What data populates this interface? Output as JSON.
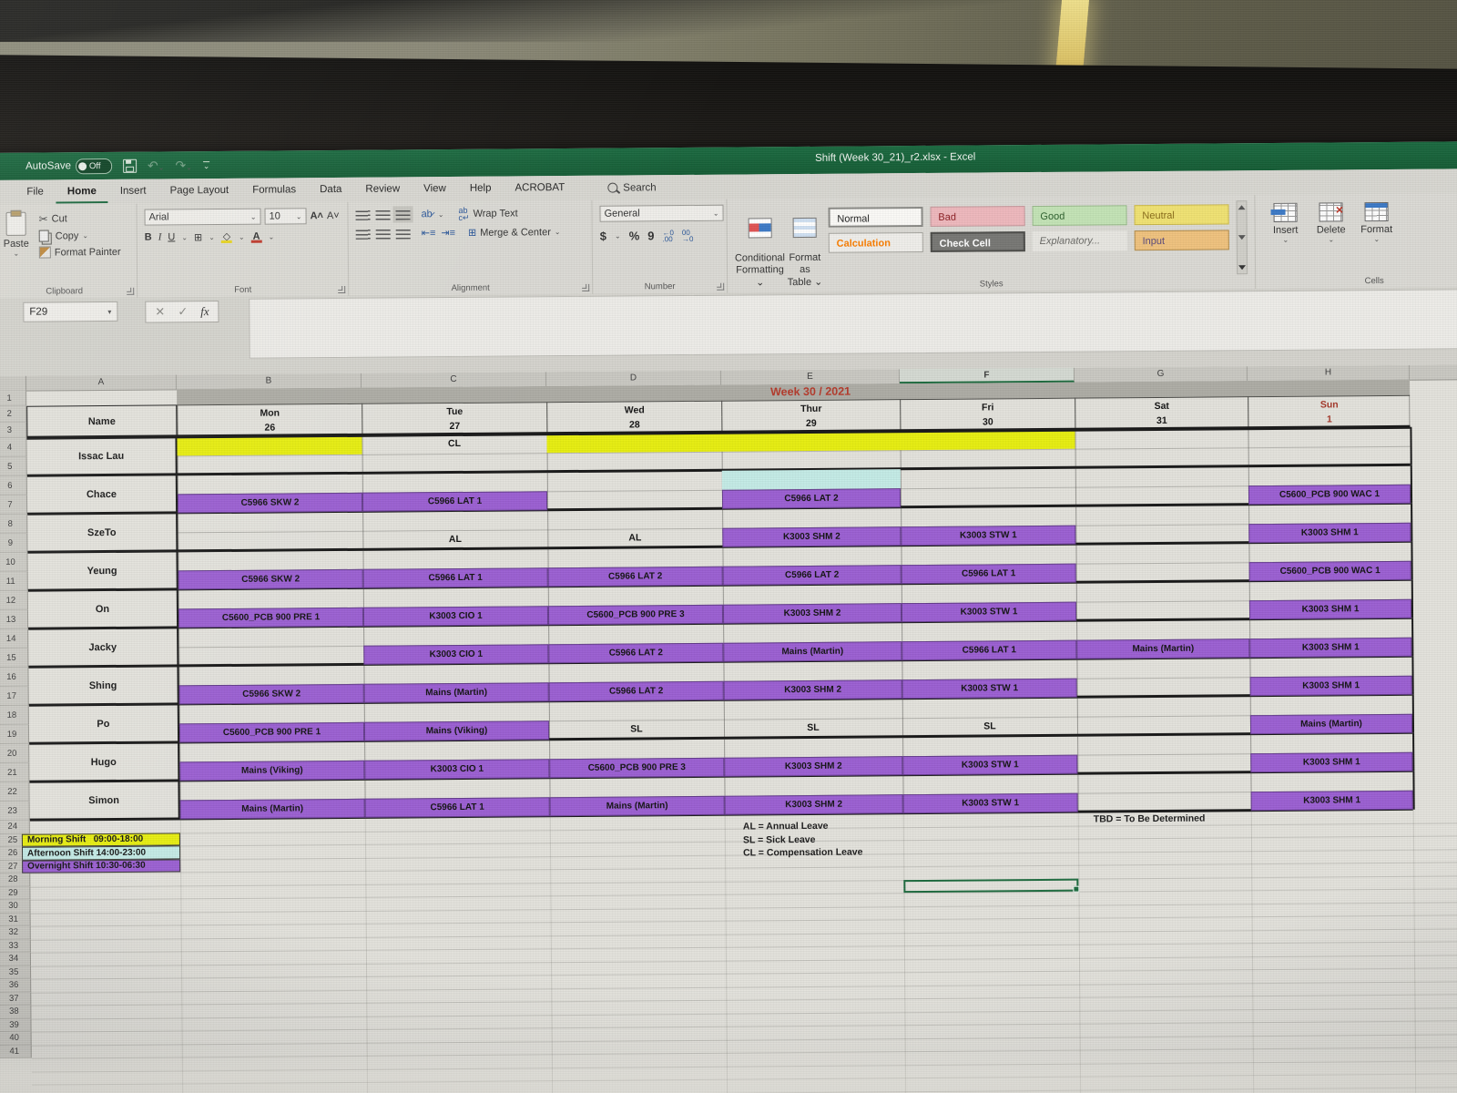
{
  "window": {
    "autosave_label": "AutoSave",
    "autosave_state": "Off",
    "title": "Shift (Week 30_21)_r2.xlsx  -  Excel"
  },
  "tabs": [
    "File",
    "Home",
    "Insert",
    "Page Layout",
    "Formulas",
    "Data",
    "Review",
    "View",
    "Help",
    "ACROBAT"
  ],
  "active_tab": "Home",
  "search": {
    "label": "Search"
  },
  "ribbon": {
    "clipboard": {
      "paste": "Paste",
      "cut": "Cut",
      "copy": "Copy",
      "format_painter": "Format Painter",
      "group": "Clipboard"
    },
    "font": {
      "name": "Arial",
      "size": "10",
      "bold": "B",
      "italic": "I",
      "underline": "U",
      "group": "Font"
    },
    "alignment": {
      "wrap_text": "Wrap Text",
      "merge_center": "Merge & Center",
      "group": "Alignment"
    },
    "number": {
      "format": "General",
      "currency": "$",
      "percent": "%",
      "comma": "9",
      "group": "Number"
    },
    "styles": {
      "conditional": "Conditional\nFormatting ⌄",
      "format_table": "Format as\nTable ⌄",
      "gallery": [
        "Normal",
        "Bad",
        "Good",
        "Neutral",
        "Calculation",
        "Check Cell",
        "Explanatory...",
        "Input"
      ],
      "group": "Styles"
    },
    "cells": {
      "buttons": [
        "Insert",
        "Delete",
        "Format"
      ],
      "group": "Cells"
    }
  },
  "formula_bar": {
    "name_box": "F29",
    "fx_label": "fx"
  },
  "sheet": {
    "columns": [
      "A",
      "B",
      "C",
      "D",
      "E",
      "F",
      "G",
      "H"
    ],
    "selected_column": "F",
    "selected_cell": "F29",
    "week_title": "Week 30 / 2021",
    "name_header": "Name",
    "days": [
      {
        "name": "Mon",
        "date": "26",
        "red": false
      },
      {
        "name": "Tue",
        "date": "27",
        "red": false
      },
      {
        "name": "Wed",
        "date": "28",
        "red": false
      },
      {
        "name": "Thur",
        "date": "29",
        "red": false
      },
      {
        "name": "Fri",
        "date": "30",
        "red": false
      },
      {
        "name": "Sat",
        "date": "31",
        "red": false
      },
      {
        "name": "Sun",
        "date": "1",
        "red": true
      }
    ],
    "row_max": 41,
    "roster": [
      {
        "name": "Issac Lau",
        "shifts": [
          {
            "day": "Mon",
            "span": 1,
            "row": "top",
            "type": "morning",
            "label": ""
          },
          {
            "day": "Tue",
            "span": 1,
            "row": "top",
            "type": "text",
            "label": "CL"
          },
          {
            "day": "Wed",
            "span": 3,
            "row": "top",
            "type": "morning",
            "label": ""
          }
        ]
      },
      {
        "name": "Chace",
        "shifts": [
          {
            "day": "Thu",
            "span": 1,
            "row": "top",
            "type": "afternoon",
            "label": ""
          },
          {
            "day": "Mon",
            "span": 1,
            "row": "bottom",
            "type": "overnight",
            "label": "C5966 SKW 2"
          },
          {
            "day": "Tue",
            "span": 1,
            "row": "bottom",
            "type": "overnight",
            "label": "C5966 LAT 1"
          },
          {
            "day": "Thu",
            "span": 1,
            "row": "bottom",
            "type": "overnight",
            "label": "C5966 LAT 2"
          },
          {
            "day": "Sun",
            "span": 1,
            "row": "bottom",
            "type": "overnight",
            "label": "C5600_PCB 900 WAC 1"
          }
        ]
      },
      {
        "name": "SzeTo",
        "shifts": [
          {
            "day": "Tue",
            "span": 1,
            "row": "bottom",
            "type": "text",
            "label": "AL"
          },
          {
            "day": "Wed",
            "span": 1,
            "row": "bottom",
            "type": "text",
            "label": "AL"
          },
          {
            "day": "Thu",
            "span": 1,
            "row": "bottom",
            "type": "overnight",
            "label": "K3003 SHM 2"
          },
          {
            "day": "Fri",
            "span": 1,
            "row": "bottom",
            "type": "overnight",
            "label": "K3003 STW 1"
          },
          {
            "day": "Sun",
            "span": 1,
            "row": "bottom",
            "type": "overnight",
            "label": "K3003 SHM 1"
          }
        ]
      },
      {
        "name": "Yeung",
        "shifts": [
          {
            "day": "Mon",
            "span": 1,
            "row": "bottom",
            "type": "overnight",
            "label": "C5966 SKW 2"
          },
          {
            "day": "Tue",
            "span": 1,
            "row": "bottom",
            "type": "overnight",
            "label": "C5966 LAT 1"
          },
          {
            "day": "Wed",
            "span": 1,
            "row": "bottom",
            "type": "overnight",
            "label": "C5966 LAT 2"
          },
          {
            "day": "Thu",
            "span": 1,
            "row": "bottom",
            "type": "overnight",
            "label": "C5966 LAT 2"
          },
          {
            "day": "Fri",
            "span": 1,
            "row": "bottom",
            "type": "overnight",
            "label": "C5966 LAT 1"
          },
          {
            "day": "Sun",
            "span": 1,
            "row": "bottom",
            "type": "overnight",
            "label": "C5600_PCB 900 WAC 1"
          }
        ]
      },
      {
        "name": "On",
        "shifts": [
          {
            "day": "Mon",
            "span": 1,
            "row": "bottom",
            "type": "overnight",
            "label": "C5600_PCB 900 PRE 1"
          },
          {
            "day": "Tue",
            "span": 1,
            "row": "bottom",
            "type": "overnight",
            "label": "K3003 CIO 1"
          },
          {
            "day": "Wed",
            "span": 1,
            "row": "bottom",
            "type": "overnight",
            "label": "C5600_PCB 900 PRE 3"
          },
          {
            "day": "Thu",
            "span": 1,
            "row": "bottom",
            "type": "overnight",
            "label": "K3003 SHM 2"
          },
          {
            "day": "Fri",
            "span": 1,
            "row": "bottom",
            "type": "overnight",
            "label": "K3003 STW 1"
          },
          {
            "day": "Sun",
            "span": 1,
            "row": "bottom",
            "type": "overnight",
            "label": "K3003 SHM 1"
          }
        ]
      },
      {
        "name": "Jacky",
        "shifts": [
          {
            "day": "Tue",
            "span": 1,
            "row": "bottom",
            "type": "overnight",
            "label": "K3003 CIO 1"
          },
          {
            "day": "Wed",
            "span": 1,
            "row": "bottom",
            "type": "overnight",
            "label": "C5966 LAT 2"
          },
          {
            "day": "Thu",
            "span": 1,
            "row": "bottom",
            "type": "overnight",
            "label": "Mains (Martin)"
          },
          {
            "day": "Fri",
            "span": 1,
            "row": "bottom",
            "type": "overnight",
            "label": "C5966 LAT 1"
          },
          {
            "day": "Sat",
            "span": 1,
            "row": "bottom",
            "type": "overnight",
            "label": "Mains (Martin)"
          },
          {
            "day": "Sun",
            "span": 1,
            "row": "bottom",
            "type": "overnight",
            "label": "K3003 SHM 1"
          }
        ]
      },
      {
        "name": "Shing",
        "shifts": [
          {
            "day": "Mon",
            "span": 1,
            "row": "bottom",
            "type": "overnight",
            "label": "C5966 SKW 2"
          },
          {
            "day": "Tue",
            "span": 1,
            "row": "bottom",
            "type": "overnight",
            "label": "Mains (Martin)"
          },
          {
            "day": "Wed",
            "span": 1,
            "row": "bottom",
            "type": "overnight",
            "label": "C5966 LAT 2"
          },
          {
            "day": "Thu",
            "span": 1,
            "row": "bottom",
            "type": "overnight",
            "label": "K3003 SHM 2"
          },
          {
            "day": "Fri",
            "span": 1,
            "row": "bottom",
            "type": "overnight",
            "label": "K3003 STW 1"
          },
          {
            "day": "Sun",
            "span": 1,
            "row": "bottom",
            "type": "overnight",
            "label": "K3003 SHM 1"
          }
        ]
      },
      {
        "name": "Po",
        "shifts": [
          {
            "day": "Mon",
            "span": 1,
            "row": "bottom",
            "type": "overnight",
            "label": "C5600_PCB 900 PRE 1"
          },
          {
            "day": "Tue",
            "span": 1,
            "row": "bottom",
            "type": "overnight",
            "label": "Mains (Viking)"
          },
          {
            "day": "Wed",
            "span": 1,
            "row": "bottom",
            "type": "text",
            "label": "SL"
          },
          {
            "day": "Thu",
            "span": 1,
            "row": "bottom",
            "type": "text",
            "label": "SL"
          },
          {
            "day": "Fri",
            "span": 1,
            "row": "bottom",
            "type": "text",
            "label": "SL"
          },
          {
            "day": "Sun",
            "span": 1,
            "row": "bottom",
            "type": "overnight",
            "label": "Mains (Martin)"
          }
        ]
      },
      {
        "name": "Hugo",
        "shifts": [
          {
            "day": "Mon",
            "span": 1,
            "row": "bottom",
            "type": "overnight",
            "label": "Mains (Viking)"
          },
          {
            "day": "Tue",
            "span": 1,
            "row": "bottom",
            "type": "overnight",
            "label": "K3003 CIO 1"
          },
          {
            "day": "Wed",
            "span": 1,
            "row": "bottom",
            "type": "overnight",
            "label": "C5600_PCB 900 PRE 3"
          },
          {
            "day": "Thu",
            "span": 1,
            "row": "bottom",
            "type": "overnight",
            "label": "K3003 SHM 2"
          },
          {
            "day": "Fri",
            "span": 1,
            "row": "bottom",
            "type": "overnight",
            "label": "K3003 STW 1"
          },
          {
            "day": "Sun",
            "span": 1,
            "row": "bottom",
            "type": "overnight",
            "label": "K3003 SHM 1"
          }
        ]
      },
      {
        "name": "Simon",
        "shifts": [
          {
            "day": "Mon",
            "span": 1,
            "row": "bottom",
            "type": "overnight",
            "label": "Mains (Martin)"
          },
          {
            "day": "Tue",
            "span": 1,
            "row": "bottom",
            "type": "overnight",
            "label": "C5966 LAT 1"
          },
          {
            "day": "Wed",
            "span": 1,
            "row": "bottom",
            "type": "overnight",
            "label": "Mains (Martin)"
          },
          {
            "day": "Thu",
            "span": 1,
            "row": "bottom",
            "type": "overnight",
            "label": "K3003 SHM 2"
          },
          {
            "day": "Fri",
            "span": 1,
            "row": "bottom",
            "type": "overnight",
            "label": "K3003 STW 1"
          },
          {
            "day": "Sun",
            "span": 1,
            "row": "bottom",
            "type": "overnight",
            "label": "K3003 SHM 1"
          }
        ]
      }
    ],
    "legend": [
      {
        "label": "Morning Shift   09:00-18:00",
        "type": "morning"
      },
      {
        "label": "Afternoon Shift 14:00-23:00",
        "type": "afternoon"
      },
      {
        "label": "Overnight Shift 10:30-06:30",
        "type": "overnight"
      }
    ],
    "notes": [
      "AL = Annual Leave",
      "SL = Sick Leave",
      "CL = Compensation Leave"
    ],
    "note_tbd": "TBD = To Be Determined"
  },
  "colors": {
    "excel_green": "#17603b",
    "morning": "#e7ee10",
    "afternoon": "#c4ebe6",
    "overnight": "#9b5fd2",
    "week_title_red": "#b43a2b",
    "sunday_red": "#a5382a",
    "style_bad_bg": "#eeb8bd",
    "style_good_bg": "#c3e3b5",
    "style_neutral_bg": "#f0e272",
    "style_calc_text": "#fa7d00",
    "style_check_bg": "#777774",
    "style_input_bg": "#efc27d"
  }
}
